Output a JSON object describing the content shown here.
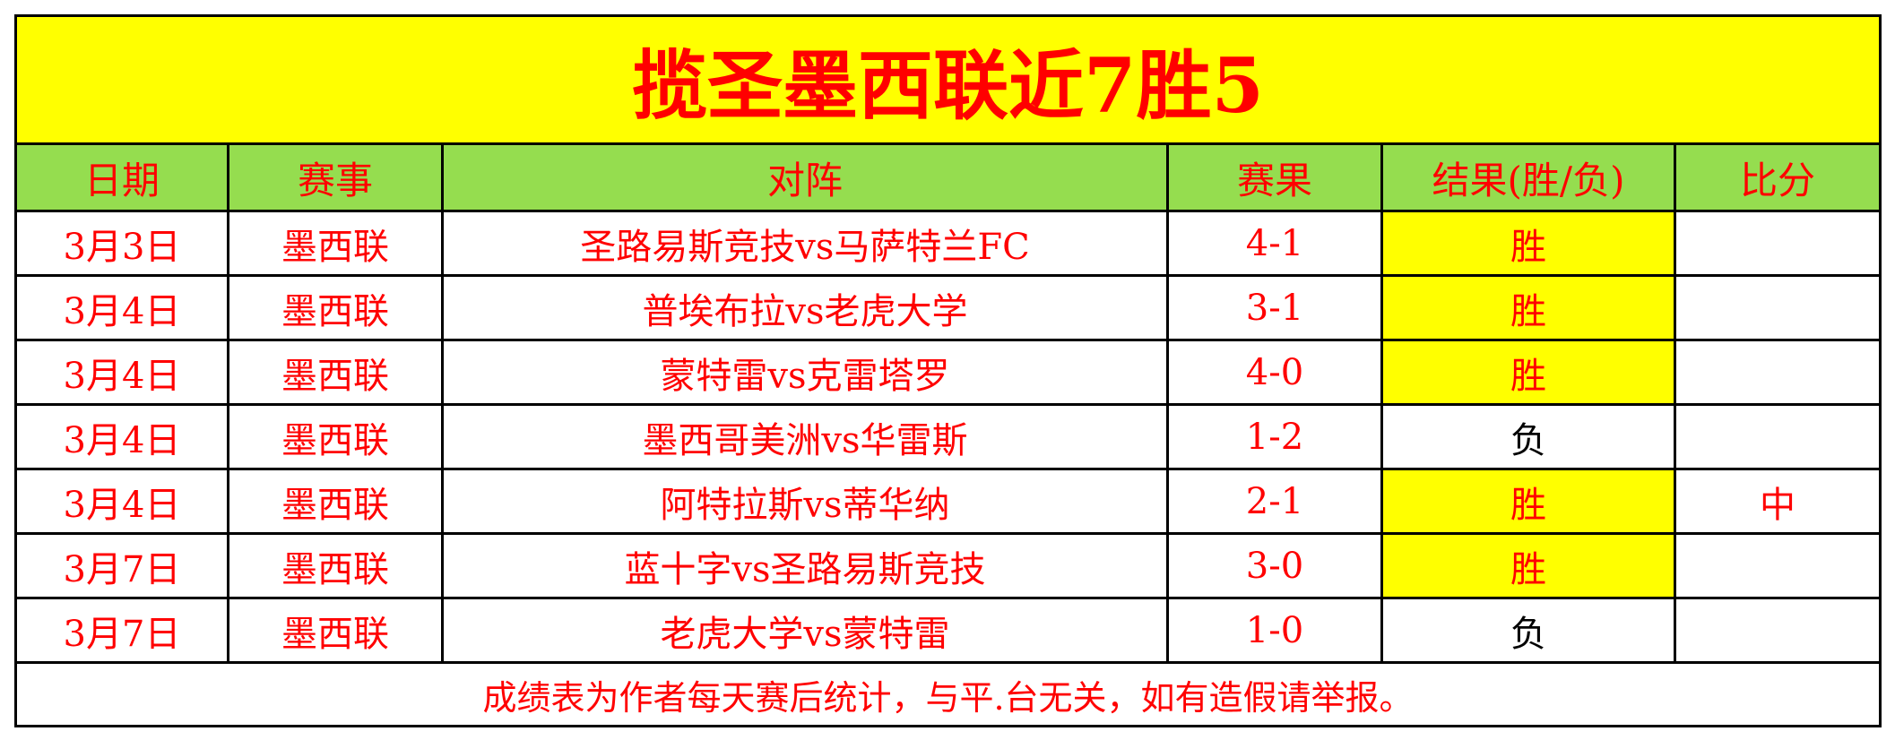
{
  "title": "揽圣墨西联近7胜5",
  "colors": {
    "title_bg": "#ffff00",
    "header_bg": "#95dd4f",
    "text": "#ff0000",
    "win_bg": "#ffff00",
    "loss_text": "#000000"
  },
  "headers": [
    "日期",
    "赛事",
    "对阵",
    "赛果",
    "结果(胜/负)",
    "比分"
  ],
  "rows": [
    {
      "date": "3月3日",
      "league": "墨西联",
      "match": "圣路易斯竞技vs马萨特兰FC",
      "score": "4-1",
      "result": "胜",
      "pick": ""
    },
    {
      "date": "3月4日",
      "league": "墨西联",
      "match": "普埃布拉vs老虎大学",
      "score": "3-1",
      "result": "胜",
      "pick": ""
    },
    {
      "date": "3月4日",
      "league": "墨西联",
      "match": "蒙特雷vs克雷塔罗",
      "score": "4-0",
      "result": "胜",
      "pick": ""
    },
    {
      "date": "3月4日",
      "league": "墨西联",
      "match": "墨西哥美洲vs华雷斯",
      "score": "1-2",
      "result": "负",
      "pick": ""
    },
    {
      "date": "3月4日",
      "league": "墨西联",
      "match": "阿特拉斯vs蒂华纳",
      "score": "2-1",
      "result": "胜",
      "pick": "中"
    },
    {
      "date": "3月7日",
      "league": "墨西联",
      "match": "蓝十字vs圣路易斯竞技",
      "score": "3-0",
      "result": "胜",
      "pick": ""
    },
    {
      "date": "3月7日",
      "league": "墨西联",
      "match": "老虎大学vs蒙特雷",
      "score": "1-0",
      "result": "负",
      "pick": ""
    }
  ],
  "footer": "成绩表为作者每天赛后统计，与平.台无关，如有造假请举报。"
}
